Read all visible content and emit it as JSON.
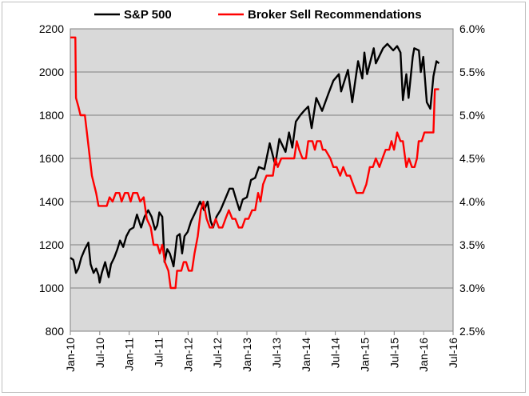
{
  "chart_data": {
    "type": "line",
    "title": "",
    "xlabel": "",
    "ylabel": "",
    "legend_placement": "top",
    "grid": true,
    "plot_background": "#d9d9d9",
    "gridline_color": "#808080",
    "x_ticks": [
      "Jan-10",
      "Jul-10",
      "Jan-11",
      "Jul-11",
      "Jan-12",
      "Jul-12",
      "Jan-13",
      "Jul-13",
      "Jan-14",
      "Jul-14",
      "Jan-15",
      "Jul-15",
      "Jan-16",
      "Jul-16"
    ],
    "y_left": {
      "ticks": [
        "800",
        "1000",
        "1200",
        "1400",
        "1600",
        "1800",
        "2000",
        "2200"
      ],
      "min": 800,
      "max": 2200
    },
    "y_right": {
      "ticks": [
        "2.5%",
        "3.0%",
        "3.5%",
        "4.0%",
        "4.5%",
        "5.0%",
        "5.5%",
        "6.0%"
      ],
      "min": 2.5,
      "max": 6.0
    },
    "series": [
      {
        "name": "S&P 500",
        "color": "#000000",
        "axis": "left",
        "points": [
          [
            "2010-01-01",
            1140
          ],
          [
            "2010-01-20",
            1130
          ],
          [
            "2010-02-05",
            1070
          ],
          [
            "2010-02-20",
            1090
          ],
          [
            "2010-03-10",
            1140
          ],
          [
            "2010-04-01",
            1180
          ],
          [
            "2010-04-23",
            1210
          ],
          [
            "2010-05-07",
            1110
          ],
          [
            "2010-05-25",
            1070
          ],
          [
            "2010-06-10",
            1090
          ],
          [
            "2010-06-25",
            1060
          ],
          [
            "2010-07-02",
            1025
          ],
          [
            "2010-07-15",
            1070
          ],
          [
            "2010-08-05",
            1120
          ],
          [
            "2010-08-27",
            1050
          ],
          [
            "2010-09-10",
            1110
          ],
          [
            "2010-09-30",
            1140
          ],
          [
            "2010-10-20",
            1180
          ],
          [
            "2010-11-05",
            1220
          ],
          [
            "2010-11-25",
            1190
          ],
          [
            "2010-12-15",
            1240
          ],
          [
            "2011-01-05",
            1270
          ],
          [
            "2011-01-28",
            1280
          ],
          [
            "2011-02-18",
            1340
          ],
          [
            "2011-03-16",
            1280
          ],
          [
            "2011-04-06",
            1330
          ],
          [
            "2011-04-29",
            1360
          ],
          [
            "2011-05-20",
            1330
          ],
          [
            "2011-06-10",
            1270
          ],
          [
            "2011-06-24",
            1290
          ],
          [
            "2011-07-07",
            1350
          ],
          [
            "2011-07-25",
            1330
          ],
          [
            "2011-08-08",
            1120
          ],
          [
            "2011-08-25",
            1180
          ],
          [
            "2011-09-10",
            1160
          ],
          [
            "2011-09-22",
            1130
          ],
          [
            "2011-10-03",
            1100
          ],
          [
            "2011-10-25",
            1240
          ],
          [
            "2011-11-10",
            1250
          ],
          [
            "2011-11-25",
            1160
          ],
          [
            "2011-12-10",
            1240
          ],
          [
            "2011-12-30",
            1260
          ],
          [
            "2012-01-20",
            1310
          ],
          [
            "2012-02-15",
            1350
          ],
          [
            "2012-03-15",
            1400
          ],
          [
            "2012-04-10",
            1360
          ],
          [
            "2012-05-01",
            1400
          ],
          [
            "2012-05-20",
            1310
          ],
          [
            "2012-06-04",
            1280
          ],
          [
            "2012-06-25",
            1330
          ],
          [
            "2012-07-20",
            1360
          ],
          [
            "2012-08-20",
            1415
          ],
          [
            "2012-09-14",
            1460
          ],
          [
            "2012-10-05",
            1460
          ],
          [
            "2012-10-25",
            1410
          ],
          [
            "2012-11-15",
            1360
          ],
          [
            "2012-12-05",
            1410
          ],
          [
            "2012-12-31",
            1420
          ],
          [
            "2013-01-25",
            1500
          ],
          [
            "2013-02-20",
            1510
          ],
          [
            "2013-03-15",
            1560
          ],
          [
            "2013-04-18",
            1550
          ],
          [
            "2013-05-21",
            1670
          ],
          [
            "2013-06-24",
            1570
          ],
          [
            "2013-07-20",
            1690
          ],
          [
            "2013-08-27",
            1630
          ],
          [
            "2013-09-18",
            1720
          ],
          [
            "2013-10-08",
            1650
          ],
          [
            "2013-10-30",
            1770
          ],
          [
            "2013-11-27",
            1800
          ],
          [
            "2013-12-20",
            1820
          ],
          [
            "2014-01-15",
            1840
          ],
          [
            "2014-02-05",
            1740
          ],
          [
            "2014-03-06",
            1880
          ],
          [
            "2014-04-11",
            1820
          ],
          [
            "2014-05-20",
            1900
          ],
          [
            "2014-06-20",
            1960
          ],
          [
            "2014-07-24",
            1990
          ],
          [
            "2014-08-07",
            1910
          ],
          [
            "2014-09-18",
            2010
          ],
          [
            "2014-10-15",
            1860
          ],
          [
            "2014-11-20",
            2050
          ],
          [
            "2014-12-16",
            1970
          ],
          [
            "2014-12-29",
            2090
          ],
          [
            "2015-01-15",
            1990
          ],
          [
            "2015-02-25",
            2110
          ],
          [
            "2015-03-10",
            2040
          ],
          [
            "2015-04-24",
            2110
          ],
          [
            "2015-05-21",
            2130
          ],
          [
            "2015-06-26",
            2100
          ],
          [
            "2015-07-20",
            2120
          ],
          [
            "2015-08-10",
            2090
          ],
          [
            "2015-08-25",
            1870
          ],
          [
            "2015-09-15",
            1990
          ],
          [
            "2015-09-29",
            1880
          ],
          [
            "2015-10-25",
            2070
          ],
          [
            "2015-11-03",
            2110
          ],
          [
            "2015-12-02",
            2100
          ],
          [
            "2015-12-14",
            2000
          ],
          [
            "2015-12-29",
            2070
          ],
          [
            "2016-01-20",
            1860
          ],
          [
            "2016-02-11",
            1830
          ],
          [
            "2016-03-01",
            1980
          ],
          [
            "2016-03-20",
            2050
          ],
          [
            "2016-04-05",
            2040
          ]
        ]
      },
      {
        "name": "Broker Sell Recommendations",
        "color": "#ff0000",
        "axis": "right",
        "points": [
          [
            "2010-01-01",
            5.9
          ],
          [
            "2010-02-01",
            5.9
          ],
          [
            "2010-02-05",
            5.2
          ],
          [
            "2010-02-20",
            5.1
          ],
          [
            "2010-03-05",
            5.0
          ],
          [
            "2010-04-01",
            5.0
          ],
          [
            "2010-04-20",
            4.7
          ],
          [
            "2010-05-15",
            4.3
          ],
          [
            "2010-06-10",
            4.1
          ],
          [
            "2010-06-25",
            3.95
          ],
          [
            "2010-08-15",
            3.95
          ],
          [
            "2010-09-01",
            4.05
          ],
          [
            "2010-09-20",
            4.0
          ],
          [
            "2010-10-10",
            4.1
          ],
          [
            "2010-11-01",
            4.1
          ],
          [
            "2010-11-15",
            4.0
          ],
          [
            "2010-12-05",
            4.1
          ],
          [
            "2010-12-25",
            4.1
          ],
          [
            "2011-01-10",
            4.0
          ],
          [
            "2011-01-25",
            4.1
          ],
          [
            "2011-02-20",
            4.1
          ],
          [
            "2011-03-10",
            4.0
          ],
          [
            "2011-04-01",
            4.05
          ],
          [
            "2011-04-20",
            3.8
          ],
          [
            "2011-05-15",
            3.7
          ],
          [
            "2011-06-01",
            3.5
          ],
          [
            "2011-06-25",
            3.5
          ],
          [
            "2011-07-10",
            3.4
          ],
          [
            "2011-07-25",
            3.5
          ],
          [
            "2011-08-10",
            3.3
          ],
          [
            "2011-09-01",
            3.2
          ],
          [
            "2011-09-15",
            3.0
          ],
          [
            "2011-10-15",
            3.0
          ],
          [
            "2011-10-25",
            3.2
          ],
          [
            "2011-11-20",
            3.2
          ],
          [
            "2011-12-05",
            3.3
          ],
          [
            "2011-12-20",
            3.3
          ],
          [
            "2012-01-05",
            3.2
          ],
          [
            "2012-01-25",
            3.2
          ],
          [
            "2012-02-10",
            3.4
          ],
          [
            "2012-03-01",
            3.6
          ],
          [
            "2012-03-20",
            3.9
          ],
          [
            "2012-04-05",
            4.0
          ],
          [
            "2012-04-25",
            3.8
          ],
          [
            "2012-05-15",
            3.7
          ],
          [
            "2012-06-01",
            3.7
          ],
          [
            "2012-06-20",
            3.8
          ],
          [
            "2012-07-10",
            3.7
          ],
          [
            "2012-08-01",
            3.7
          ],
          [
            "2012-08-20",
            3.8
          ],
          [
            "2012-09-10",
            3.9
          ],
          [
            "2012-10-01",
            3.8
          ],
          [
            "2012-10-20",
            3.8
          ],
          [
            "2012-11-10",
            3.7
          ],
          [
            "2012-12-01",
            3.7
          ],
          [
            "2012-12-20",
            3.8
          ],
          [
            "2013-01-10",
            3.8
          ],
          [
            "2013-02-01",
            3.9
          ],
          [
            "2013-02-20",
            3.9
          ],
          [
            "2013-03-10",
            4.1
          ],
          [
            "2013-03-25",
            4.0
          ],
          [
            "2013-04-10",
            4.2
          ],
          [
            "2013-05-01",
            4.3
          ],
          [
            "2013-05-20",
            4.3
          ],
          [
            "2013-06-10",
            4.3
          ],
          [
            "2013-06-25",
            4.5
          ],
          [
            "2013-07-10",
            4.4
          ],
          [
            "2013-08-01",
            4.5
          ],
          [
            "2013-08-20",
            4.5
          ],
          [
            "2013-10-01",
            4.5
          ],
          [
            "2013-10-20",
            4.5
          ],
          [
            "2013-11-05",
            4.7
          ],
          [
            "2013-11-20",
            4.6
          ],
          [
            "2013-12-10",
            4.5
          ],
          [
            "2014-01-01",
            4.5
          ],
          [
            "2014-01-15",
            4.7
          ],
          [
            "2014-02-10",
            4.7
          ],
          [
            "2014-02-25",
            4.6
          ],
          [
            "2014-03-10",
            4.7
          ],
          [
            "2014-04-01",
            4.7
          ],
          [
            "2014-04-15",
            4.6
          ],
          [
            "2014-05-01",
            4.6
          ],
          [
            "2014-06-01",
            4.5
          ],
          [
            "2014-06-20",
            4.4
          ],
          [
            "2014-07-10",
            4.4
          ],
          [
            "2014-08-01",
            4.3
          ],
          [
            "2014-08-20",
            4.4
          ],
          [
            "2014-09-10",
            4.3
          ],
          [
            "2014-10-01",
            4.3
          ],
          [
            "2014-10-20",
            4.2
          ],
          [
            "2014-11-10",
            4.1
          ],
          [
            "2014-12-20",
            4.1
          ],
          [
            "2015-01-10",
            4.2
          ],
          [
            "2015-02-01",
            4.4
          ],
          [
            "2015-02-20",
            4.4
          ],
          [
            "2015-03-10",
            4.5
          ],
          [
            "2015-04-01",
            4.4
          ],
          [
            "2015-04-20",
            4.5
          ],
          [
            "2015-05-10",
            4.6
          ],
          [
            "2015-06-01",
            4.6
          ],
          [
            "2015-06-15",
            4.7
          ],
          [
            "2015-07-01",
            4.6
          ],
          [
            "2015-07-20",
            4.8
          ],
          [
            "2015-08-10",
            4.7
          ],
          [
            "2015-08-25",
            4.7
          ],
          [
            "2015-09-15",
            4.4
          ],
          [
            "2015-10-01",
            4.5
          ],
          [
            "2015-10-20",
            4.4
          ],
          [
            "2015-11-05",
            4.4
          ],
          [
            "2015-11-20",
            4.5
          ],
          [
            "2015-12-01",
            4.7
          ],
          [
            "2015-12-20",
            4.7
          ],
          [
            "2016-01-05",
            4.8
          ],
          [
            "2016-02-01",
            4.8
          ],
          [
            "2016-02-20",
            4.8
          ],
          [
            "2016-03-01",
            4.8
          ],
          [
            "2016-03-10",
            5.3
          ],
          [
            "2016-04-05",
            5.3
          ]
        ]
      }
    ]
  }
}
